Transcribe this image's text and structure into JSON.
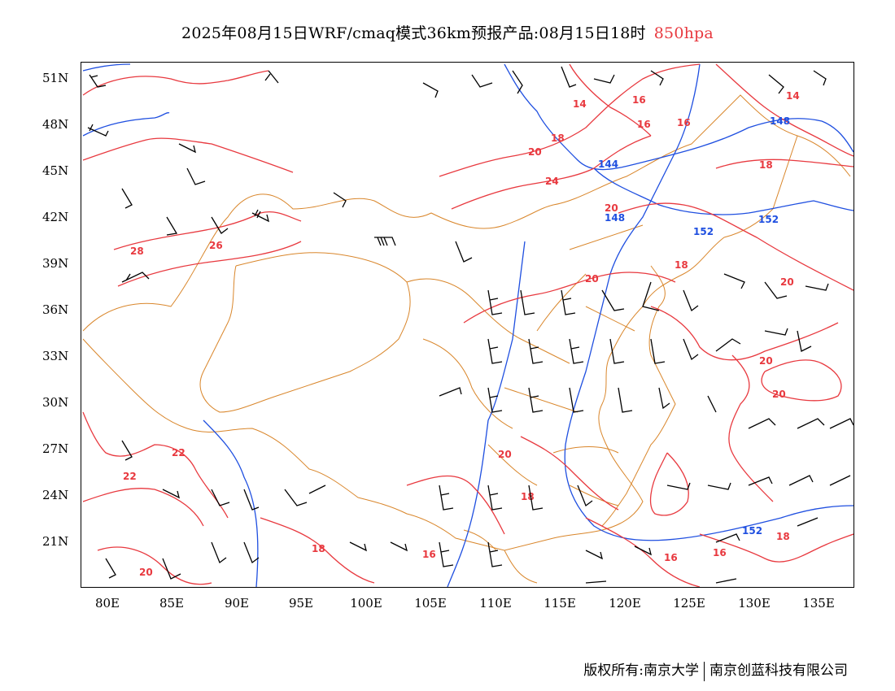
{
  "title": {
    "main": "2025年08月15日WRF/cmaq模式36km预报产品:08月15日18时",
    "level": "850hpa"
  },
  "colors": {
    "temperature_contour": "#e8393f",
    "height_contour": "#1f4fe0",
    "boundary": "#d9862b",
    "wind_barb": "#000000"
  },
  "axes": {
    "lat_labels": [
      "51N",
      "48N",
      "45N",
      "42N",
      "39N",
      "36N",
      "33N",
      "30N",
      "27N",
      "24N",
      "21N"
    ],
    "lon_labels": [
      "80E",
      "85E",
      "90E",
      "95E",
      "100E",
      "105E",
      "110E",
      "115E",
      "120E",
      "125E",
      "130E",
      "135E"
    ]
  },
  "contour_labels": {
    "temperature": [
      "14",
      "16",
      "16",
      "16",
      "18",
      "20",
      "24",
      "20",
      "18",
      "28",
      "26",
      "20",
      "18",
      "20",
      "20",
      "20",
      "20",
      "22",
      "22",
      "20",
      "18",
      "18",
      "16",
      "16",
      "16",
      "18",
      "14"
    ],
    "height": [
      "148",
      "144",
      "148",
      "152",
      "152",
      "152"
    ]
  },
  "footer": {
    "owner1": "版权所有:南京大学",
    "owner2": "南京创蓝科技有限公司"
  }
}
